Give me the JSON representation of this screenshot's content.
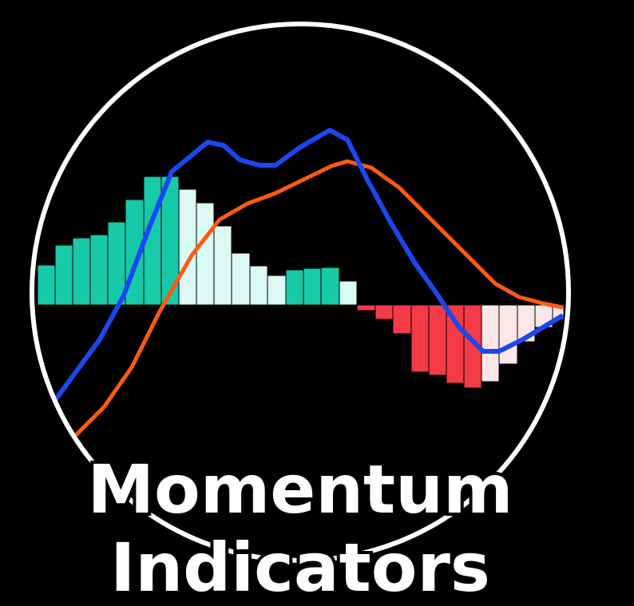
{
  "title": {
    "line1": "Momentum",
    "line2": "Indicators"
  }
}
